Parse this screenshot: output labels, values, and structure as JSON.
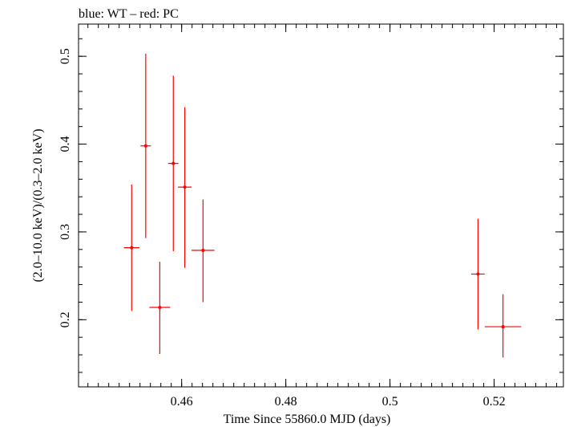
{
  "chart_data": {
    "type": "scatter",
    "title": "blue: WT – red: PC",
    "xlabel": "Time Since 55860.0 MJD (days)",
    "ylabel": "(2.0–10.0 keV)/(0.3–2.0 keV)",
    "xlim": [
      0.4402,
      0.5333
    ],
    "ylim": [
      0.1235,
      0.5367
    ],
    "x_ticks": [
      0.46,
      0.48,
      0.5,
      0.52
    ],
    "x_tick_labels": [
      "0.46",
      "0.48",
      "0.5",
      "0.52"
    ],
    "y_ticks": [
      0.2,
      0.3,
      0.4,
      0.5
    ],
    "y_tick_labels": [
      "0.2",
      "0.3",
      "0.4",
      "0.5"
    ],
    "grid": false,
    "series": [
      {
        "color": "#ff0000",
        "points": [
          {
            "x": 0.4504,
            "y": 0.282,
            "xerr": 0.0015,
            "ylo": 0.21,
            "yhi": 0.354
          },
          {
            "x": 0.4531,
            "y": 0.398,
            "xerr": 0.001,
            "ylo": 0.293,
            "yhi": 0.503
          },
          {
            "x": 0.4558,
            "y": 0.214,
            "xerr": 0.002,
            "ylo": 0.161,
            "yhi": 0.266
          },
          {
            "x": 0.4584,
            "y": 0.378,
            "xerr": 0.001,
            "ylo": 0.278,
            "yhi": 0.478
          },
          {
            "x": 0.4606,
            "y": 0.351,
            "xerr": 0.0013,
            "ylo": 0.259,
            "yhi": 0.442
          },
          {
            "x": 0.4641,
            "y": 0.279,
            "xerr": 0.0022,
            "ylo": 0.22,
            "yhi": 0.337
          },
          {
            "x": 0.5169,
            "y": 0.252,
            "xerr": 0.0013,
            "ylo": 0.189,
            "yhi": 0.315
          },
          {
            "x": 0.5217,
            "y": 0.192,
            "xerr": 0.0035,
            "ylo": 0.157,
            "yhi": 0.229
          }
        ]
      }
    ]
  }
}
